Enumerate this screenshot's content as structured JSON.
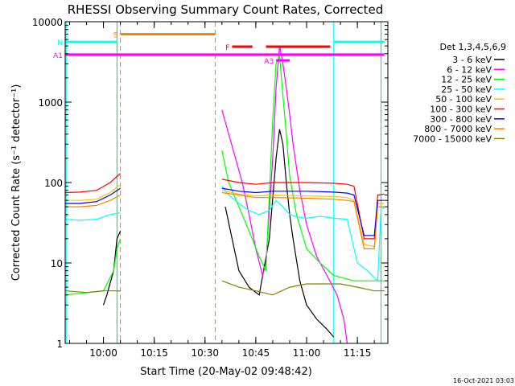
{
  "chart_data": {
    "type": "line",
    "title": "RHESSI Observing Summary Count Rates, Corrected",
    "xlabel": "Start Time (20-May-02 09:48:42)",
    "ylabel": "Corrected Count Rate (s⁻¹ detector⁻¹)",
    "y_scale": "log",
    "ylim": [
      1,
      10000
    ],
    "xlim": [
      "09:48:42",
      "11:24:00"
    ],
    "x_ticks": [
      "10:00",
      "10:15",
      "10:30",
      "10:45",
      "11:00",
      "11:15"
    ],
    "y_ticks": [
      1,
      10,
      100,
      1000,
      10000
    ],
    "y_tick_labels": [
      "1",
      "10",
      "100",
      "1000",
      "10000"
    ],
    "footer": "16-Oct-2021 03:03",
    "legend": {
      "header": "Det 1,3,4,5,6,9",
      "placement": "right"
    },
    "series": [
      {
        "name": "3 - 6 keV",
        "color": "#000000",
        "points": [
          [
            "09:48:42",
            null
          ],
          [
            "10:00",
            3
          ],
          [
            "10:01",
            4
          ],
          [
            "10:03",
            8
          ],
          [
            "10:04",
            20
          ],
          [
            "10:05",
            25
          ],
          [
            "10:35",
            null
          ],
          [
            "10:36",
            50
          ],
          [
            "10:38",
            20
          ],
          [
            "10:40",
            8
          ],
          [
            "10:43",
            5
          ],
          [
            "10:46",
            4
          ],
          [
            "10:49",
            20
          ],
          [
            "10:51",
            200
          ],
          [
            "10:52",
            460
          ],
          [
            "10:53",
            300
          ],
          [
            "10:54",
            100
          ],
          [
            "10:55",
            40
          ],
          [
            "10:56",
            20
          ],
          [
            "10:58",
            6
          ],
          [
            "11:00",
            3
          ],
          [
            "11:03",
            2
          ],
          [
            "11:06",
            1.5
          ],
          [
            "11:08",
            1.2
          ]
        ]
      },
      {
        "name": "6 - 12 keV",
        "color": "#ff00ff",
        "points": [
          [
            "10:35",
            800
          ],
          [
            "10:37",
            400
          ],
          [
            "10:39",
            200
          ],
          [
            "10:41",
            100
          ],
          [
            "10:43",
            40
          ],
          [
            "10:45",
            15
          ],
          [
            "10:47",
            7
          ],
          [
            "10:48",
            10
          ],
          [
            "10:50",
            200
          ],
          [
            "10:51",
            1500
          ],
          [
            "10:52",
            5000
          ],
          [
            "10:53",
            3000
          ],
          [
            "10:54",
            1500
          ],
          [
            "10:55",
            700
          ],
          [
            "10:56",
            300
          ],
          [
            "10:58",
            80
          ],
          [
            "11:00",
            30
          ],
          [
            "11:03",
            12
          ],
          [
            "11:06",
            7
          ],
          [
            "11:09",
            4
          ],
          [
            "11:11",
            2
          ],
          [
            "11:12",
            1
          ]
        ]
      },
      {
        "name": "12 - 25 keV",
        "color": "#00ff00",
        "points": [
          [
            "09:48:42",
            4
          ],
          [
            "10:00",
            4.5
          ],
          [
            "10:03",
            8
          ],
          [
            "10:04",
            15
          ],
          [
            "10:05",
            20
          ],
          [
            "10:35",
            250
          ],
          [
            "10:37",
            100
          ],
          [
            "10:40",
            50
          ],
          [
            "10:43",
            25
          ],
          [
            "10:46",
            12
          ],
          [
            "10:48",
            8
          ],
          [
            "10:50",
            600
          ],
          [
            "10:51",
            3000
          ],
          [
            "10:52",
            3800
          ],
          [
            "10:53",
            1200
          ],
          [
            "10:54",
            400
          ],
          [
            "10:55",
            120
          ],
          [
            "10:57",
            40
          ],
          [
            "11:00",
            15
          ],
          [
            "11:04",
            10
          ],
          [
            "11:08",
            7
          ],
          [
            "11:14",
            6
          ],
          [
            "11:20",
            6
          ],
          [
            "11:23",
            6
          ]
        ]
      },
      {
        "name": "25 - 50 keV",
        "color": "#00ffff",
        "points": [
          [
            "09:48:42",
            35
          ],
          [
            "09:53",
            34
          ],
          [
            "09:58",
            35
          ],
          [
            "10:02",
            40
          ],
          [
            "10:05",
            42
          ],
          [
            "10:35",
            90
          ],
          [
            "10:37",
            70
          ],
          [
            "10:40",
            55
          ],
          [
            "10:43",
            45
          ],
          [
            "10:46",
            40
          ],
          [
            "10:49",
            45
          ],
          [
            "10:51",
            60
          ],
          [
            "10:53",
            50
          ],
          [
            "10:55",
            40
          ],
          [
            "10:58",
            37
          ],
          [
            "11:00",
            36
          ],
          [
            "11:04",
            38
          ],
          [
            "11:08",
            36
          ],
          [
            "11:12",
            35
          ],
          [
            "11:15",
            10
          ],
          [
            "11:18",
            8
          ],
          [
            "11:21",
            6
          ],
          [
            "11:22",
            50
          ],
          [
            "11:23",
            48
          ]
        ]
      },
      {
        "name": "50 - 100 keV",
        "color": "#ffc000",
        "points": [
          [
            "09:48:42",
            60
          ],
          [
            "09:53",
            60
          ],
          [
            "09:58",
            62
          ],
          [
            "10:02",
            75
          ],
          [
            "10:05",
            95
          ],
          [
            "10:35",
            80
          ],
          [
            "10:40",
            72
          ],
          [
            "10:45",
            68
          ],
          [
            "10:50",
            70
          ],
          [
            "11:00",
            68
          ],
          [
            "11:08",
            67
          ],
          [
            "11:12",
            65
          ],
          [
            "11:14",
            60
          ],
          [
            "11:17",
            17
          ],
          [
            "11:20",
            16
          ],
          [
            "11:21",
            55
          ],
          [
            "11:23",
            55
          ]
        ]
      },
      {
        "name": "100 - 300 keV",
        "color": "#ff0000",
        "points": [
          [
            "09:48:42",
            75
          ],
          [
            "09:53",
            76
          ],
          [
            "09:58",
            80
          ],
          [
            "10:02",
            100
          ],
          [
            "10:05",
            130
          ],
          [
            "10:35",
            110
          ],
          [
            "10:40",
            100
          ],
          [
            "10:45",
            95
          ],
          [
            "10:50",
            100
          ],
          [
            "11:00",
            100
          ],
          [
            "11:08",
            98
          ],
          [
            "11:12",
            95
          ],
          [
            "11:14",
            90
          ],
          [
            "11:17",
            20
          ],
          [
            "11:20",
            20
          ],
          [
            "11:21",
            70
          ],
          [
            "11:23",
            72
          ]
        ]
      },
      {
        "name": "300 - 800 keV",
        "color": "#0000ff",
        "points": [
          [
            "09:48:42",
            55
          ],
          [
            "09:53",
            55
          ],
          [
            "09:58",
            58
          ],
          [
            "10:02",
            70
          ],
          [
            "10:05",
            85
          ],
          [
            "10:35",
            85
          ],
          [
            "10:40",
            78
          ],
          [
            "10:45",
            75
          ],
          [
            "10:50",
            78
          ],
          [
            "11:00",
            78
          ],
          [
            "11:08",
            76
          ],
          [
            "11:12",
            74
          ],
          [
            "11:14",
            70
          ],
          [
            "11:17",
            22
          ],
          [
            "11:20",
            22
          ],
          [
            "11:21",
            60
          ],
          [
            "11:23",
            60
          ]
        ]
      },
      {
        "name": "800 - 7000 keV",
        "color": "#ff8000",
        "points": [
          [
            "09:48:42",
            50
          ],
          [
            "09:53",
            50
          ],
          [
            "09:58",
            52
          ],
          [
            "10:02",
            60
          ],
          [
            "10:05",
            70
          ],
          [
            "10:35",
            75
          ],
          [
            "10:40",
            70
          ],
          [
            "10:45",
            65
          ],
          [
            "10:50",
            65
          ],
          [
            "11:00",
            64
          ],
          [
            "11:08",
            62
          ],
          [
            "11:12",
            60
          ],
          [
            "11:14",
            58
          ],
          [
            "11:17",
            15
          ],
          [
            "11:20",
            15
          ],
          [
            "11:21",
            50
          ],
          [
            "11:23",
            50
          ]
        ]
      },
      {
        "name": "7000 - 15000 keV",
        "color": "#808000",
        "points": [
          [
            "09:48:42",
            4.5
          ],
          [
            "09:55",
            4.3
          ],
          [
            "10:00",
            4.5
          ],
          [
            "10:05",
            4.5
          ],
          [
            "10:35",
            6
          ],
          [
            "10:40",
            5
          ],
          [
            "10:45",
            4.5
          ],
          [
            "10:50",
            4
          ],
          [
            "10:55",
            5
          ],
          [
            "11:00",
            5.5
          ],
          [
            "11:05",
            5.5
          ],
          [
            "11:10",
            5.5
          ],
          [
            "11:15",
            5
          ],
          [
            "11:20",
            4.5
          ],
          [
            "11:23",
            4.5
          ]
        ]
      }
    ],
    "flags": [
      {
        "label": "S",
        "color": "#ff8000",
        "spans": [
          [
            "10:05",
            "10:33"
          ]
        ],
        "level": 7000
      },
      {
        "label": "N",
        "color": "#00ffff",
        "spans": [
          [
            "09:48:42",
            "10:04"
          ],
          [
            "11:08",
            "11:23"
          ]
        ],
        "level": 5600
      },
      {
        "label": "F",
        "color": "#ff0000",
        "spans": [
          [
            "10:38",
            "10:44"
          ],
          [
            "10:48",
            "11:07"
          ]
        ],
        "level": 4900
      },
      {
        "label": "A1",
        "color": "#ff00ff",
        "spans": [
          [
            "09:48:42",
            "11:23"
          ]
        ],
        "level": 3900
      },
      {
        "label": "A3",
        "color": "#ff00ff",
        "spans": [
          [
            "10:51",
            "10:55"
          ]
        ],
        "level": 3300
      }
    ],
    "markers": [
      {
        "color": "#00ffff",
        "style": "solid",
        "times": [
          "09:49",
          "11:08"
        ]
      },
      {
        "color": "#00ffff",
        "style": "dashed",
        "times": [
          "10:04",
          "11:22"
        ]
      },
      {
        "color": "#ff8000",
        "style": "dashed",
        "times": [
          "10:05",
          "10:33"
        ]
      },
      {
        "color": "#00ff00",
        "style": "solid",
        "times": [
          "10:04",
          "11:22"
        ]
      }
    ]
  }
}
